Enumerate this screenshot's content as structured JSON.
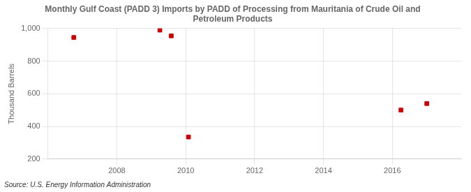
{
  "chart_data": {
    "type": "scatter",
    "title": "Monthly Gulf Coast (PADD 3) Imports by PADD of Processing from Mauritania of Crude Oil and\nPetroleum Products",
    "ylabel": "Thousand Barrels",
    "source": "Source: U.S. Energy Information Administration",
    "x": [
      2006.75,
      2009.25,
      2009.58,
      2010.08,
      2016.25,
      2017.0
    ],
    "values": [
      945,
      990,
      955,
      335,
      500,
      540
    ],
    "color": "#cc0000",
    "marker": "square",
    "xlim": [
      2006.0,
      2018.0
    ],
    "xticks": [
      2008,
      2010,
      2012,
      2014,
      2016
    ],
    "ylim": [
      200,
      1000
    ],
    "yticks": [
      200,
      400,
      600,
      800,
      {
        "value": 1000,
        "label": "1,000"
      }
    ],
    "grid": true
  }
}
